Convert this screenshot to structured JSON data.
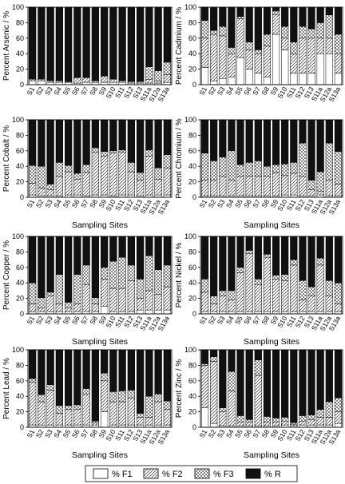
{
  "figure": {
    "legend": [
      {
        "label": "% F1",
        "pattern": "white"
      },
      {
        "label": "% F2",
        "pattern": "diagonal"
      },
      {
        "label": "% F3",
        "pattern": "crosshatch"
      },
      {
        "label": "% R",
        "pattern": "black"
      }
    ],
    "colors": {
      "R": "#111111",
      "outline": "#000000",
      "background": "#ffffff"
    }
  },
  "chart_data": [
    {
      "type": "bar",
      "stacked": true,
      "categories": [
        "S1",
        "S2",
        "S3",
        "S4",
        "S5",
        "S6",
        "S7",
        "S8",
        "S9",
        "S10",
        "S11",
        "S12",
        "S13",
        "S11a",
        "S12a",
        "S13a"
      ],
      "ylabel": "Percent Arsenic / %",
      "xlabel": "",
      "ylim": [
        0,
        100
      ],
      "yticks": [
        0,
        20,
        40,
        60,
        80,
        100
      ],
      "series": [
        {
          "name": "% F1",
          "values": [
            5,
            5,
            3,
            3,
            3,
            2,
            3,
            3,
            3,
            3,
            3,
            2,
            2,
            2,
            2,
            3
          ]
        },
        {
          "name": "% F2",
          "values": [
            2,
            2,
            2,
            2,
            1,
            7,
            6,
            2,
            8,
            4,
            2,
            2,
            2,
            5,
            3,
            10
          ]
        },
        {
          "name": "% F3",
          "values": [
            0,
            0,
            0,
            0,
            0,
            0,
            0,
            0,
            0,
            0,
            0,
            0,
            0,
            16,
            13,
            16
          ]
        },
        {
          "name": "% R",
          "values": [
            93,
            93,
            95,
            95,
            96,
            91,
            91,
            95,
            89,
            93,
            95,
            96,
            96,
            77,
            82,
            71
          ]
        }
      ]
    },
    {
      "type": "bar",
      "stacked": true,
      "categories": [
        "S1",
        "S2",
        "S3",
        "S4",
        "S5",
        "S6",
        "S7",
        "S8",
        "S9",
        "S10",
        "S11",
        "S12",
        "S13",
        "S11a",
        "S12a",
        "S13a"
      ],
      "ylabel": "Percent Cadmium / %",
      "xlabel": "",
      "ylim": [
        0,
        100
      ],
      "yticks": [
        0,
        20,
        40,
        60,
        80,
        100
      ],
      "series": [
        {
          "name": "% F1",
          "values": [
            22,
            5,
            8,
            10,
            35,
            20,
            15,
            10,
            65,
            45,
            15,
            15,
            15,
            40,
            40,
            15
          ]
        },
        {
          "name": "% F2",
          "values": [
            38,
            60,
            55,
            30,
            50,
            25,
            25,
            40,
            25,
            15,
            25,
            45,
            45,
            20,
            20,
            25
          ]
        },
        {
          "name": "% F3",
          "values": [
            23,
            5,
            12,
            8,
            3,
            10,
            5,
            15,
            5,
            15,
            15,
            15,
            12,
            20,
            30,
            25
          ]
        },
        {
          "name": "% R",
          "values": [
            17,
            30,
            25,
            52,
            12,
            45,
            55,
            35,
            5,
            25,
            45,
            25,
            28,
            20,
            10,
            35
          ]
        }
      ]
    },
    {
      "type": "bar",
      "stacked": true,
      "categories": [
        "S1",
        "S2",
        "S3",
        "S4",
        "S5",
        "S6",
        "S7",
        "S8",
        "S9",
        "S10",
        "S11",
        "S12",
        "S13",
        "S11a",
        "S12a",
        "S13a"
      ],
      "ylabel": "Percent Cobalt / %",
      "xlabel": "Sampling Sites",
      "ylim": [
        0,
        100
      ],
      "yticks": [
        0,
        20,
        40,
        60,
        80,
        100
      ],
      "series": [
        {
          "name": "% F1",
          "values": [
            3,
            2,
            2,
            2,
            3,
            3,
            2,
            3,
            3,
            2,
            3,
            3,
            2,
            3,
            3,
            3
          ]
        },
        {
          "name": "% F2",
          "values": [
            15,
            10,
            8,
            25,
            30,
            20,
            30,
            55,
            50,
            55,
            55,
            30,
            20,
            50,
            20,
            35
          ]
        },
        {
          "name": "% F3",
          "values": [
            23,
            28,
            7,
            18,
            8,
            8,
            10,
            6,
            6,
            3,
            3,
            12,
            10,
            8,
            15,
            17
          ]
        },
        {
          "name": "% R",
          "values": [
            59,
            60,
            83,
            55,
            59,
            69,
            58,
            36,
            41,
            40,
            39,
            55,
            68,
            39,
            62,
            45
          ]
        }
      ]
    },
    {
      "type": "bar",
      "stacked": true,
      "categories": [
        "S1",
        "S2",
        "S3",
        "S4",
        "S5",
        "S6",
        "S7",
        "S8",
        "S9",
        "S10",
        "S11",
        "S12",
        "S13",
        "S11a",
        "S12a",
        "S13a"
      ],
      "ylabel": "Percent Chromium / %",
      "xlabel": "Sampling Sites",
      "ylim": [
        0,
        100
      ],
      "yticks": [
        0,
        20,
        40,
        60,
        80,
        100
      ],
      "series": [
        {
          "name": "% F1",
          "values": [
            2,
            2,
            2,
            2,
            2,
            2,
            2,
            2,
            2,
            3,
            3,
            2,
            2,
            3,
            2,
            2
          ]
        },
        {
          "name": "% F2",
          "values": [
            20,
            20,
            25,
            20,
            25,
            25,
            25,
            25,
            30,
            25,
            28,
            25,
            8,
            5,
            20,
            15
          ]
        },
        {
          "name": "% F3",
          "values": [
            35,
            25,
            25,
            38,
            15,
            18,
            20,
            13,
            10,
            15,
            14,
            43,
            12,
            25,
            48,
            42
          ]
        },
        {
          "name": "% R",
          "values": [
            43,
            53,
            48,
            40,
            58,
            55,
            53,
            60,
            58,
            57,
            55,
            30,
            78,
            67,
            30,
            41
          ]
        }
      ]
    },
    {
      "type": "bar",
      "stacked": true,
      "categories": [
        "S1",
        "S2",
        "S3",
        "S4",
        "S5",
        "S6",
        "S7",
        "S8",
        "S9",
        "S10",
        "S11",
        "S12",
        "S13",
        "S11a",
        "S12a",
        "S13a"
      ],
      "ylabel": "Percent Copper / %",
      "xlabel": "Sampling Sites",
      "ylim": [
        0,
        100
      ],
      "yticks": [
        0,
        20,
        40,
        60,
        80,
        100
      ],
      "series": [
        {
          "name": "% F1",
          "values": [
            3,
            3,
            3,
            3,
            3,
            3,
            3,
            3,
            10,
            3,
            3,
            3,
            5,
            5,
            5,
            5
          ]
        },
        {
          "name": "% F2",
          "values": [
            10,
            5,
            20,
            10,
            5,
            10,
            35,
            10,
            35,
            30,
            30,
            40,
            15,
            25,
            20,
            30
          ]
        },
        {
          "name": "% F3",
          "values": [
            27,
            13,
            5,
            38,
            7,
            38,
            25,
            8,
            15,
            35,
            40,
            20,
            25,
            45,
            32,
            28
          ]
        },
        {
          "name": "% R",
          "values": [
            60,
            79,
            72,
            49,
            85,
            49,
            37,
            79,
            40,
            32,
            27,
            37,
            55,
            25,
            43,
            37
          ]
        }
      ]
    },
    {
      "type": "bar",
      "stacked": true,
      "categories": [
        "S1",
        "S2",
        "S3",
        "S4",
        "S5",
        "S6",
        "S7",
        "S8",
        "S9",
        "S10",
        "S11",
        "S12",
        "S13",
        "S11a",
        "S12a",
        "S13a"
      ],
      "ylabel": "Percent Nickel / %",
      "xlabel": "Sampling Sites",
      "ylim": [
        0,
        100
      ],
      "yticks": [
        0,
        20,
        40,
        60,
        80,
        100
      ],
      "series": [
        {
          "name": "% F1",
          "values": [
            3,
            3,
            3,
            3,
            3,
            3,
            3,
            3,
            3,
            3,
            3,
            3,
            3,
            3,
            3,
            3
          ]
        },
        {
          "name": "% F2",
          "values": [
            25,
            10,
            20,
            15,
            50,
            75,
            35,
            70,
            42,
            40,
            60,
            15,
            20,
            60,
            20,
            10
          ]
        },
        {
          "name": "% F3",
          "values": [
            17,
            10,
            7,
            12,
            7,
            4,
            7,
            4,
            5,
            8,
            7,
            25,
            12,
            9,
            20,
            27
          ]
        },
        {
          "name": "% R",
          "values": [
            55,
            77,
            70,
            70,
            40,
            18,
            55,
            23,
            50,
            49,
            30,
            57,
            65,
            28,
            57,
            60
          ]
        }
      ]
    },
    {
      "type": "bar",
      "stacked": true,
      "categories": [
        "S1",
        "S2",
        "S3",
        "S4",
        "S5",
        "S6",
        "S7",
        "S8",
        "S9",
        "S10",
        "S11",
        "S12",
        "S13",
        "S11a",
        "S12a",
        "S13a"
      ],
      "ylabel": "Percent Lead / %",
      "xlabel": "Sampling Sites",
      "ylim": [
        0,
        100
      ],
      "yticks": [
        0,
        20,
        40,
        60,
        80,
        100
      ],
      "series": [
        {
          "name": "% F1",
          "values": [
            3,
            3,
            3,
            3,
            3,
            3,
            3,
            3,
            20,
            3,
            3,
            3,
            3,
            3,
            3,
            3
          ]
        },
        {
          "name": "% F2",
          "values": [
            55,
            30,
            45,
            15,
            20,
            20,
            40,
            3,
            40,
            30,
            30,
            35,
            10,
            10,
            30,
            20
          ]
        },
        {
          "name": "% F3",
          "values": [
            5,
            9,
            7,
            10,
            5,
            6,
            7,
            2,
            10,
            13,
            14,
            10,
            5,
            27,
            10,
            11
          ]
        },
        {
          "name": "% R",
          "values": [
            37,
            58,
            45,
            72,
            72,
            71,
            50,
            92,
            30,
            54,
            53,
            52,
            82,
            60,
            57,
            66
          ]
        }
      ]
    },
    {
      "type": "bar",
      "stacked": true,
      "categories": [
        "S1",
        "S2",
        "S3",
        "S4",
        "S5",
        "S6",
        "S7",
        "S8",
        "S9",
        "S10",
        "S11",
        "S12",
        "S13",
        "S11a",
        "S12a",
        "S13a"
      ],
      "ylabel": "Percent Zinc / %",
      "xlabel": "Sampling Sites",
      "ylim": [
        0,
        100
      ],
      "yticks": [
        0,
        20,
        40,
        60,
        80,
        100
      ],
      "series": [
        {
          "name": "% F1",
          "values": [
            25,
            5,
            2,
            2,
            2,
            2,
            2,
            2,
            2,
            3,
            2,
            3,
            3,
            3,
            3,
            5
          ]
        },
        {
          "name": "% F2",
          "values": [
            55,
            80,
            18,
            45,
            5,
            5,
            65,
            5,
            5,
            5,
            2,
            5,
            7,
            10,
            10,
            15
          ]
        },
        {
          "name": "% F3",
          "values": [
            2,
            6,
            5,
            25,
            8,
            3,
            20,
            7,
            5,
            5,
            2,
            7,
            6,
            10,
            20,
            18
          ]
        },
        {
          "name": "% R",
          "values": [
            18,
            9,
            75,
            28,
            85,
            90,
            13,
            86,
            88,
            87,
            94,
            85,
            84,
            77,
            67,
            62
          ]
        }
      ]
    }
  ]
}
